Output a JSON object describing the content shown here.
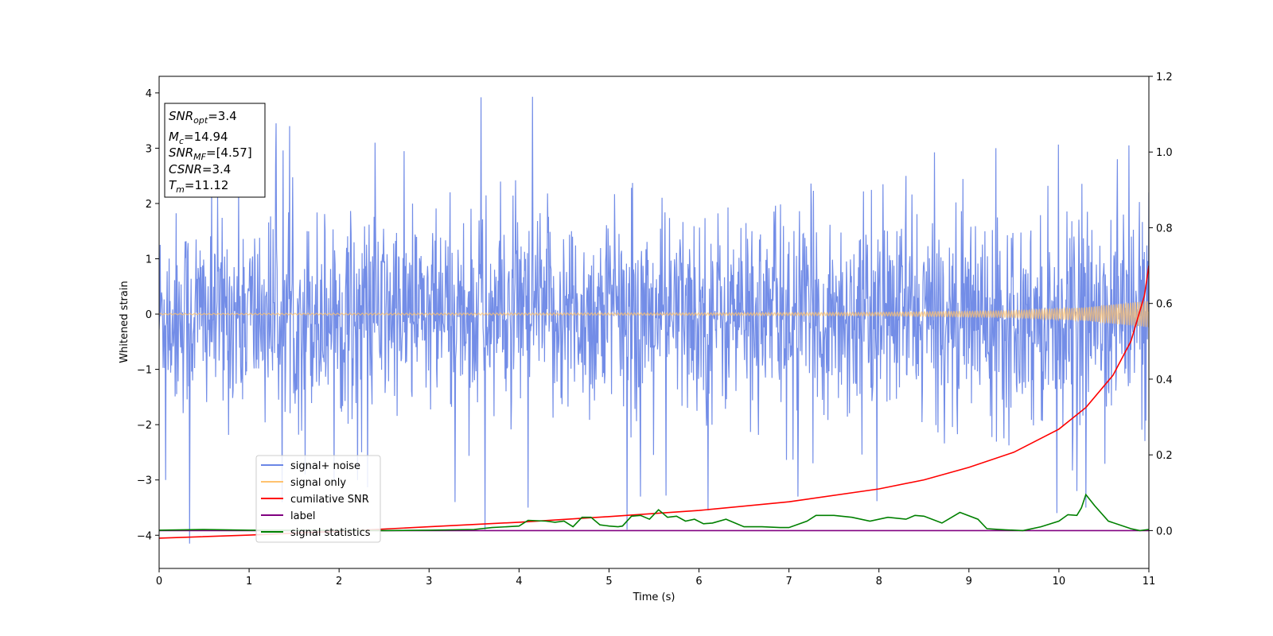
{
  "chart_data": {
    "type": "line",
    "xlabel": "Time (s)",
    "ylabel": "Whitened strain",
    "xlim": [
      0,
      11
    ],
    "ylim": [
      -4.6,
      4.3
    ],
    "y2lim": [
      -0.1,
      1.2
    ],
    "x_ticks": [
      0,
      1,
      2,
      3,
      4,
      5,
      6,
      7,
      8,
      9,
      10,
      11
    ],
    "y_ticks": [
      -4,
      -3,
      -2,
      -1,
      0,
      1,
      2,
      3,
      4
    ],
    "y_tick_labels": [
      "−4",
      "−3",
      "−2",
      "−1",
      "0",
      "1",
      "2",
      "3",
      "4"
    ],
    "y2_ticks": [
      0.0,
      0.2,
      0.4,
      0.6,
      0.8,
      1.0,
      1.2
    ],
    "y2_tick_labels": [
      "0.0",
      "0.2",
      "0.4",
      "0.6",
      "0.8",
      "1.0",
      "1.2"
    ],
    "grid": false,
    "legend_position": "lower-left",
    "series": [
      {
        "name": "signal+ noise",
        "axis": "left",
        "color": "#6b87e6",
        "kind": "noise",
        "sample_rate": 180,
        "std": 0.9,
        "peaks": [
          [
            0.34,
            -4.15
          ],
          [
            0.07,
            -3.0
          ],
          [
            1.3,
            3.45
          ],
          [
            1.62,
            -2.9
          ],
          [
            2.25,
            -2.5
          ],
          [
            2.4,
            3.1
          ],
          [
            3.58,
            3.92
          ],
          [
            3.62,
            -3.9
          ],
          [
            4.15,
            3.93
          ],
          [
            4.1,
            -3.5
          ],
          [
            5.2,
            -3.9
          ],
          [
            5.35,
            -3.3
          ],
          [
            6.1,
            -3.55
          ],
          [
            7.1,
            -3.3
          ],
          [
            9.98,
            -3.6
          ],
          [
            10.2,
            -3.2
          ],
          [
            10.3,
            -3.5
          ],
          [
            11.0,
            2.2
          ],
          [
            10.78,
            3.05
          ],
          [
            10.65,
            2.8
          ],
          [
            8.3,
            2.5
          ],
          [
            9.3,
            3.0
          ]
        ]
      },
      {
        "name": "signal only",
        "axis": "left",
        "color": "#ffc26e",
        "kind": "chirp",
        "envelope": [
          [
            0,
            0.01
          ],
          [
            6,
            0.02
          ],
          [
            8,
            0.03
          ],
          [
            9.5,
            0.06
          ],
          [
            10.3,
            0.12
          ],
          [
            11,
            0.24
          ]
        ]
      },
      {
        "name": "cumilative SNR",
        "axis": "right",
        "color": "#ff0000",
        "kind": "line",
        "points": [
          [
            0,
            -0.02
          ],
          [
            1,
            -0.012
          ],
          [
            2,
            -0.002
          ],
          [
            3,
            0.01
          ],
          [
            4,
            0.022
          ],
          [
            5,
            0.037
          ],
          [
            6,
            0.053
          ],
          [
            7,
            0.076
          ],
          [
            8,
            0.11
          ],
          [
            8.5,
            0.134
          ],
          [
            9,
            0.167
          ],
          [
            9.5,
            0.207
          ],
          [
            10,
            0.268
          ],
          [
            10.3,
            0.325
          ],
          [
            10.6,
            0.41
          ],
          [
            10.8,
            0.5
          ],
          [
            10.95,
            0.62
          ],
          [
            11,
            0.7
          ]
        ]
      },
      {
        "name": "label",
        "axis": "right",
        "color": "#800080",
        "kind": "line",
        "points": [
          [
            0,
            0.0
          ],
          [
            11,
            0.0
          ]
        ]
      },
      {
        "name": "signal statistics",
        "axis": "right",
        "color": "#008000",
        "kind": "line",
        "points": [
          [
            0,
            0.001
          ],
          [
            0.5,
            0.003
          ],
          [
            1,
            0.001
          ],
          [
            2,
            0.0005
          ],
          [
            2.5,
            0.0
          ],
          [
            3,
            0.001
          ],
          [
            3.5,
            0.003
          ],
          [
            3.7,
            0.008
          ],
          [
            4.0,
            0.012
          ],
          [
            4.1,
            0.027
          ],
          [
            4.3,
            0.025
          ],
          [
            4.4,
            0.022
          ],
          [
            4.5,
            0.025
          ],
          [
            4.6,
            0.01
          ],
          [
            4.7,
            0.035
          ],
          [
            4.8,
            0.035
          ],
          [
            4.9,
            0.015
          ],
          [
            5.0,
            0.012
          ],
          [
            5.1,
            0.01
          ],
          [
            5.15,
            0.012
          ],
          [
            5.25,
            0.038
          ],
          [
            5.35,
            0.04
          ],
          [
            5.45,
            0.03
          ],
          [
            5.55,
            0.055
          ],
          [
            5.65,
            0.035
          ],
          [
            5.75,
            0.038
          ],
          [
            5.85,
            0.025
          ],
          [
            5.95,
            0.03
          ],
          [
            6.05,
            0.018
          ],
          [
            6.15,
            0.02
          ],
          [
            6.3,
            0.03
          ],
          [
            6.5,
            0.01
          ],
          [
            6.7,
            0.01
          ],
          [
            6.9,
            0.008
          ],
          [
            7.0,
            0.008
          ],
          [
            7.2,
            0.025
          ],
          [
            7.3,
            0.04
          ],
          [
            7.5,
            0.04
          ],
          [
            7.7,
            0.035
          ],
          [
            7.9,
            0.025
          ],
          [
            8.1,
            0.035
          ],
          [
            8.3,
            0.03
          ],
          [
            8.4,
            0.04
          ],
          [
            8.5,
            0.038
          ],
          [
            8.7,
            0.02
          ],
          [
            8.9,
            0.048
          ],
          [
            9.1,
            0.03
          ],
          [
            9.2,
            0.005
          ],
          [
            9.4,
            0.002
          ],
          [
            9.6,
            0.0
          ],
          [
            9.8,
            0.01
          ],
          [
            10.0,
            0.025
          ],
          [
            10.1,
            0.042
          ],
          [
            10.2,
            0.04
          ],
          [
            10.25,
            0.06
          ],
          [
            10.3,
            0.095
          ],
          [
            10.4,
            0.065
          ],
          [
            10.55,
            0.025
          ],
          [
            10.8,
            0.005
          ],
          [
            10.9,
            0.0
          ],
          [
            11.0,
            0.003
          ]
        ]
      }
    ],
    "info_box": {
      "lines": [
        {
          "base": "SNR",
          "sub": "opt",
          "rest": "=3.4"
        },
        {
          "base": "M",
          "sub": "c",
          "rest": "=14.94"
        },
        {
          "base": "SNR",
          "sub": "MF",
          "rest": "=[4.57]"
        },
        {
          "base": "CSNR",
          "sub": "",
          "rest": "=3.4"
        },
        {
          "base": "T",
          "sub": "m",
          "rest": "=11.12"
        }
      ]
    }
  }
}
